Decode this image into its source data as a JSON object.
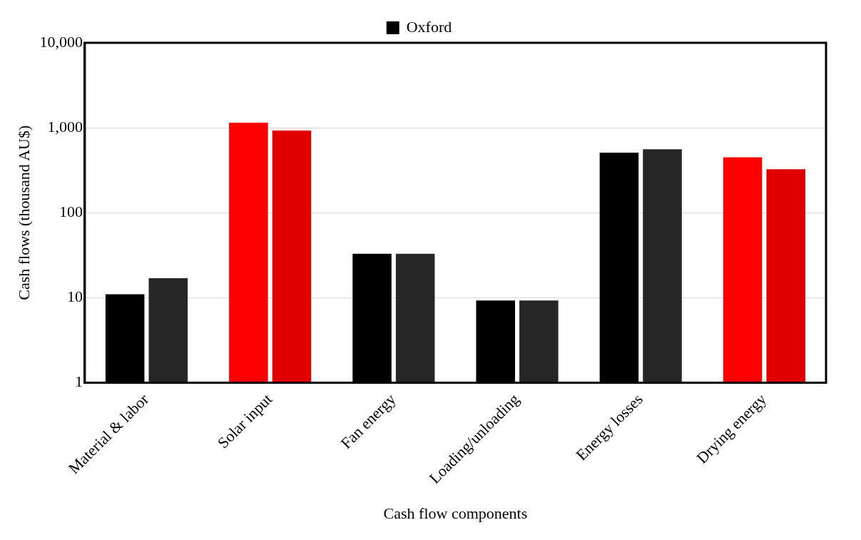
{
  "chart_data": {
    "type": "bar",
    "xlabel": "Cash flow components",
    "ylabel": "Cash flows (thousand AU$)",
    "categories": [
      "Material & labor",
      "Solar input",
      "Fan energy",
      "Loading/unloading",
      "Energy losses",
      "Drying energy"
    ],
    "series": [
      {
        "name": "Oxford",
        "colors": [
          "#000000",
          "#ff0000",
          "#000000",
          "#000000",
          "#000000",
          "#ff0000"
        ],
        "values": [
          11,
          1150,
          33,
          9.3,
          510,
          450
        ]
      },
      {
        "colors": [
          "#262626",
          "#e00000",
          "#262626",
          "#262626",
          "#262626",
          "#e00000"
        ],
        "values": [
          17,
          930,
          33,
          9.3,
          560,
          325
        ]
      }
    ],
    "log": true,
    "ylim": [
      1,
      10000
    ],
    "yticks": [
      1,
      10,
      100,
      {
        "value": 1000,
        "label": "1,000"
      },
      {
        "value": 10000,
        "label": "10,000"
      }
    ],
    "grid": "y",
    "legend": "top"
  }
}
